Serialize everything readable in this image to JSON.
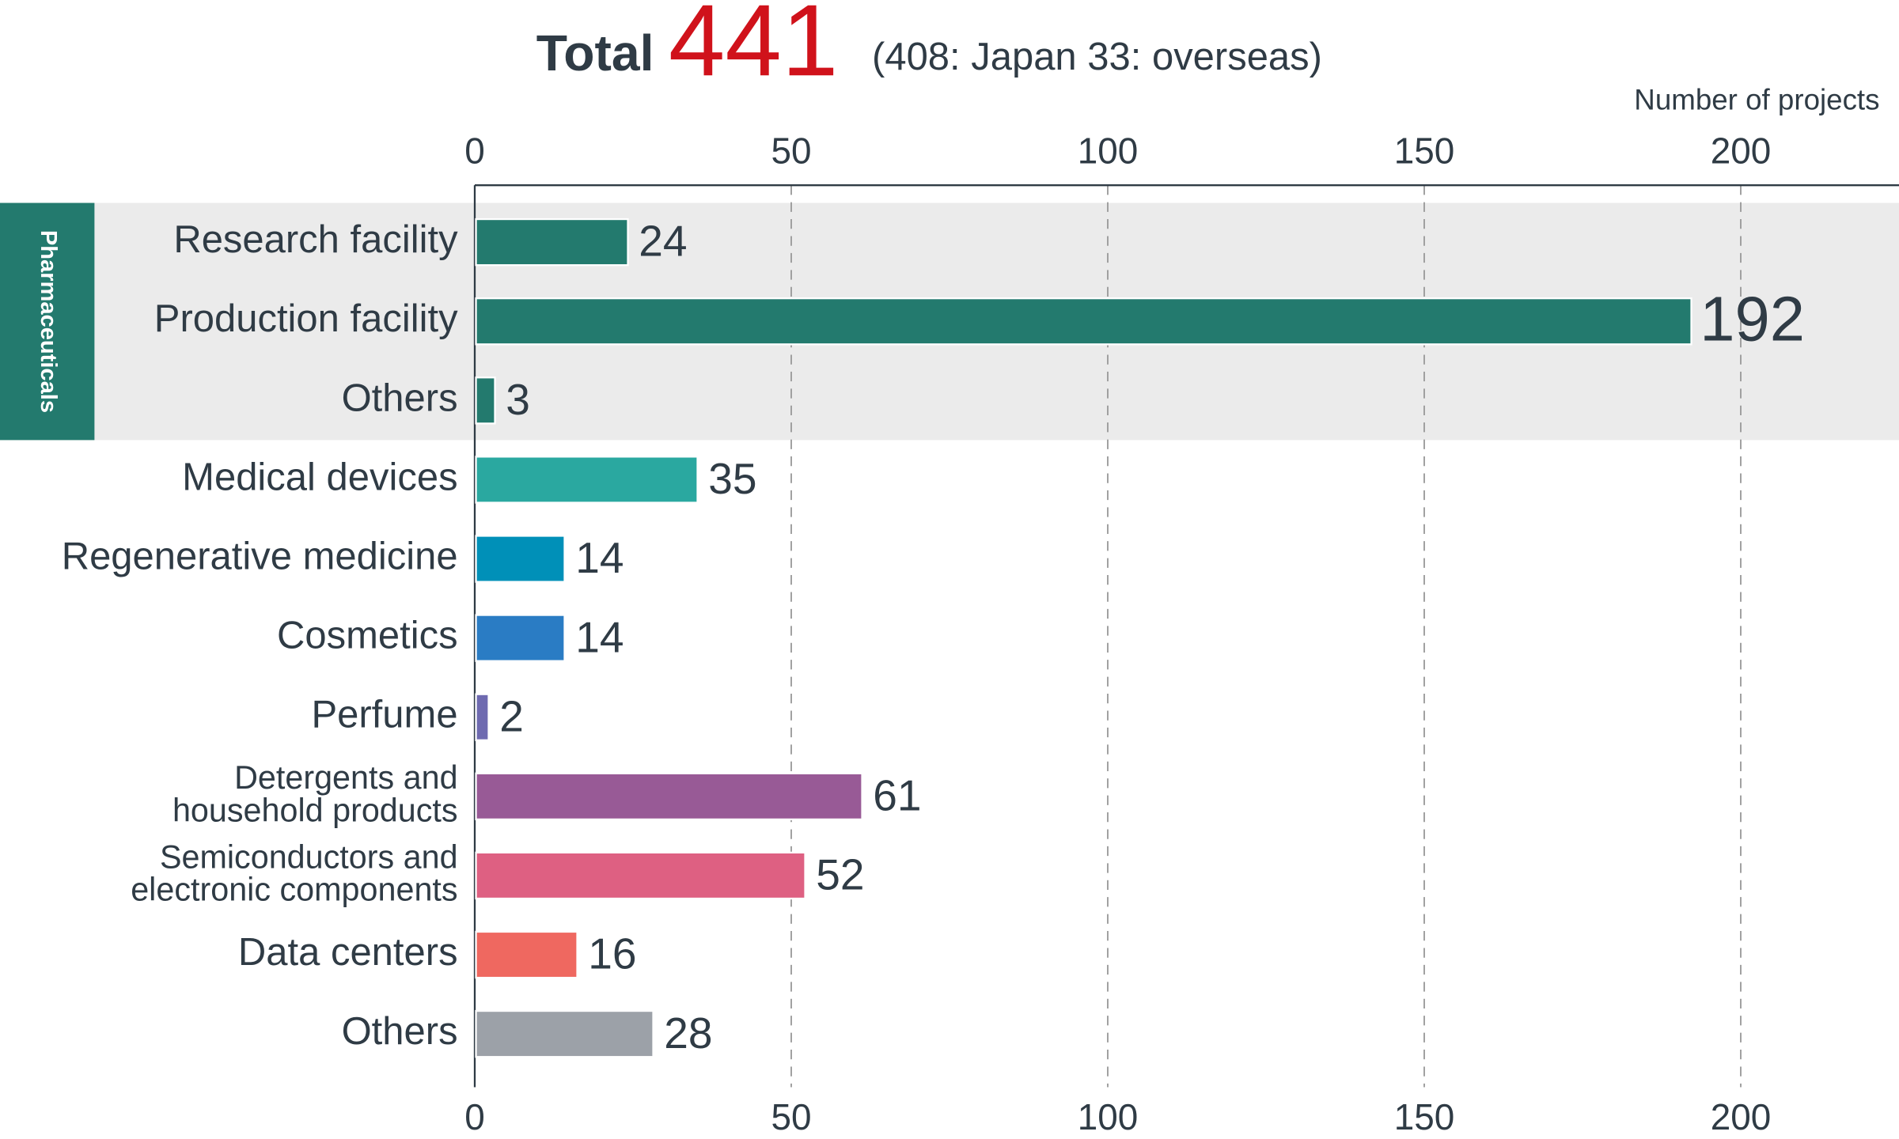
{
  "chart_data": {
    "type": "hbar",
    "title": "Total",
    "total": 441,
    "subtitle": "(408: Japan 33: overseas)",
    "x_label": "Number of projects",
    "categories": [
      "Research facility",
      "Production facility",
      "Others",
      "Medical devices",
      "Regenerative medicine",
      "Cosmetics",
      "Perfume",
      "Detergents and\nhousehold products",
      "Semiconductors and\nelectronic components",
      "Data centers",
      "Others"
    ],
    "category_groups": [
      "Pharmaceuticals",
      "Pharmaceuticals",
      "Pharmaceuticals",
      null,
      null,
      null,
      null,
      null,
      null,
      null,
      null
    ],
    "values": [
      24,
      192,
      3,
      35,
      14,
      14,
      2,
      61,
      52,
      16,
      28
    ],
    "colors": [
      "#237a6e",
      "#237a6e",
      "#237a6e",
      "#2aa8a0",
      "#0090b8",
      "#2a7cc4",
      "#6e6ab0",
      "#985a96",
      "#de6082",
      "#ef6860",
      "#9ca1a8"
    ],
    "xlim": [
      0,
      225
    ],
    "xticks": [
      0,
      50,
      100,
      150,
      200
    ],
    "grid": true
  }
}
